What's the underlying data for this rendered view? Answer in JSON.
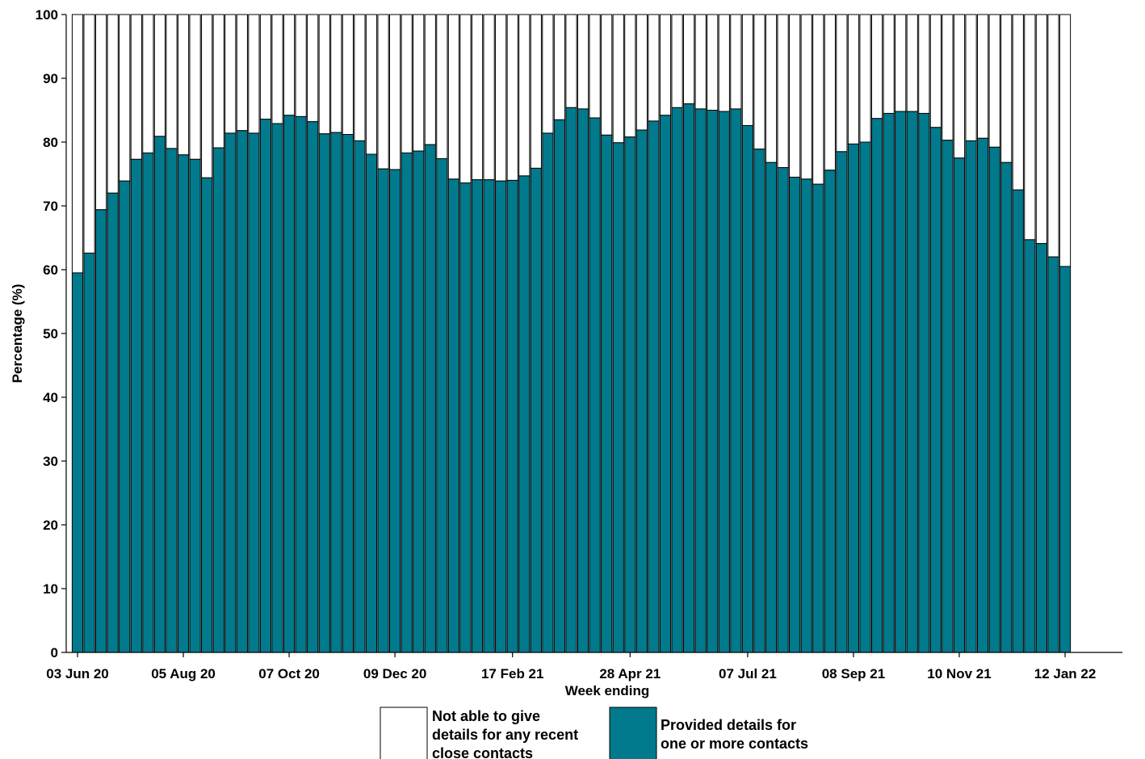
{
  "chart_data": {
    "type": "bar",
    "stacked": true,
    "title": "",
    "xlabel": "Week ending",
    "ylabel": "Percentage (%)",
    "ylim": [
      0,
      100
    ],
    "yticks": [
      0,
      10,
      20,
      30,
      40,
      50,
      60,
      70,
      80,
      90,
      100
    ],
    "grid": false,
    "legend_position": "bottom",
    "x_tick_labels": [
      {
        "index": 0,
        "label": "03 Jun 20"
      },
      {
        "index": 9,
        "label": "05 Aug 20"
      },
      {
        "index": 18,
        "label": "07 Oct 20"
      },
      {
        "index": 27,
        "label": "09 Dec 20"
      },
      {
        "index": 37,
        "label": "17 Feb 21"
      },
      {
        "index": 47,
        "label": "28 Apr 21"
      },
      {
        "index": 57,
        "label": "07 Jul 21"
      },
      {
        "index": 66,
        "label": "08 Sep 21"
      },
      {
        "index": 75,
        "label": "10 Nov 21"
      },
      {
        "index": 84,
        "label": "12 Jan 22"
      }
    ],
    "series": [
      {
        "name": "Provided details for one or more contacts",
        "legend_lines": [
          "Provided details for",
          " one or more contacts"
        ],
        "color": "#007A8C",
        "values": [
          59.5,
          62.6,
          69.4,
          72.0,
          73.9,
          77.3,
          78.3,
          80.9,
          79.0,
          78.0,
          77.3,
          74.4,
          79.1,
          81.4,
          81.8,
          81.4,
          83.6,
          82.9,
          84.2,
          84.0,
          83.2,
          81.3,
          81.5,
          81.2,
          80.2,
          78.1,
          75.8,
          75.7,
          78.3,
          78.6,
          79.6,
          77.4,
          74.2,
          73.6,
          74.1,
          74.1,
          73.9,
          74.0,
          74.7,
          75.9,
          81.4,
          83.5,
          85.4,
          85.2,
          83.8,
          81.1,
          79.9,
          80.8,
          81.9,
          83.3,
          84.2,
          85.4,
          86.0,
          85.2,
          85.0,
          84.8,
          85.2,
          82.6,
          78.9,
          76.8,
          76.0,
          74.5,
          74.2,
          73.4,
          75.6,
          78.5,
          79.7,
          80.0,
          83.7,
          84.5,
          84.8,
          84.8,
          84.5,
          82.3,
          80.3,
          77.5,
          80.2,
          80.6,
          79.2,
          76.8,
          72.5,
          64.7,
          64.1,
          62.0,
          60.5
        ]
      },
      {
        "name": "Not able to give details for any recent close contacts",
        "legend_lines": [
          "Not able to give",
          " details for any recent",
          " close contacts"
        ],
        "color": "#FFFFFF",
        "values": "remainder_to_100"
      }
    ]
  }
}
